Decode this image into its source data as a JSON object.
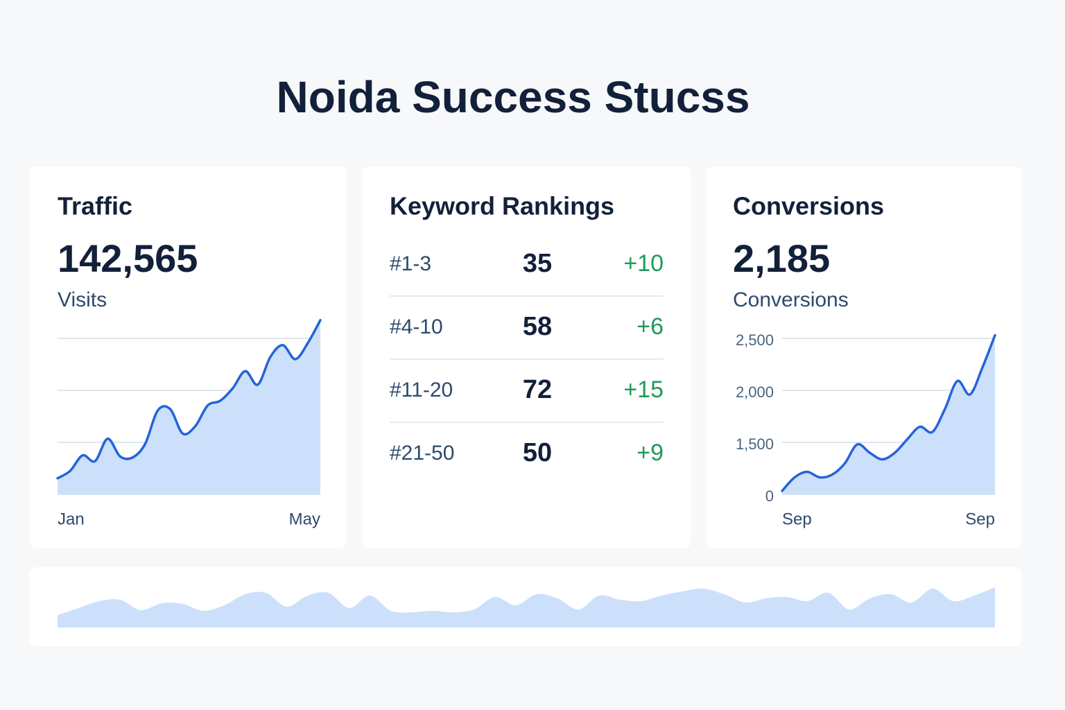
{
  "title": "Noida Success Stucss",
  "traffic": {
    "heading": "Traffic",
    "value": "142,565",
    "unit": "Visits",
    "chart_data": {
      "type": "line",
      "color": "#2563d8",
      "fill": "#cce0fb",
      "categories": [
        "Jan",
        null,
        null,
        null,
        null,
        null,
        null,
        null,
        null,
        null,
        null,
        null,
        null,
        null,
        null,
        null,
        null,
        null,
        null,
        null,
        null,
        "May"
      ],
      "values": [
        0.31,
        0.45,
        0.75,
        0.64,
        1.07,
        0.73,
        0.71,
        0.97,
        1.61,
        1.64,
        1.17,
        1.31,
        1.71,
        1.8,
        2.04,
        2.37,
        2.11,
        2.64,
        2.87,
        2.6,
        2.91,
        3.35
      ],
      "ylim": [
        0,
        3.4
      ],
      "yticks": [
        0,
        1,
        2,
        3
      ],
      "grid": true,
      "tick_labels": false
    }
  },
  "keywords": {
    "heading": "Keyword Rankings",
    "rows": [
      {
        "rank": "#1-3",
        "count": 35,
        "change": "+10"
      },
      {
        "rank": "#4-10",
        "count": 58,
        "change": "+6"
      },
      {
        "rank": "#11-20",
        "count": 72,
        "change": "+15"
      },
      {
        "rank": "#21-50",
        "count": 50,
        "change": "+9"
      }
    ]
  },
  "conversions": {
    "heading": "Conversions",
    "value": "2,185",
    "unit": "Conversions",
    "chart_data": {
      "type": "line",
      "color": "#2563d8",
      "fill": "#cce0fb",
      "scale": "tick-spaced",
      "categories": [
        "Sep",
        null,
        null,
        null,
        null,
        null,
        null,
        null,
        null,
        null,
        null,
        null,
        null,
        null,
        null,
        null,
        null,
        "Sep"
      ],
      "values": [
        100,
        490,
        650,
        490,
        570,
        890,
        1440,
        1200,
        1010,
        1200,
        1530,
        1650,
        1600,
        1820,
        2090,
        1960,
        2220,
        2530
      ],
      "ylim": [
        0,
        2550
      ],
      "yticks": [
        0,
        {
          "value": 1500,
          "label": "1,500"
        },
        {
          "value": 2000,
          "label": "2,000"
        },
        {
          "value": 2500,
          "label": "2,500"
        }
      ],
      "grid": true,
      "tick_labels": true
    }
  },
  "trend": {
    "chart_data": {
      "type": "area",
      "fill": "#cce0fb",
      "values": [
        18,
        28,
        38,
        40,
        25,
        35,
        34,
        24,
        32,
        48,
        50,
        30,
        46,
        50,
        28,
        46,
        24,
        22,
        24,
        22,
        26,
        44,
        32,
        48,
        42,
        26,
        46,
        40,
        38,
        46,
        52,
        56,
        48,
        36,
        42,
        44,
        38,
        50,
        26,
        42,
        48,
        36,
        56,
        38,
        46,
        58
      ],
      "ylim": [
        0,
        70
      ]
    }
  }
}
